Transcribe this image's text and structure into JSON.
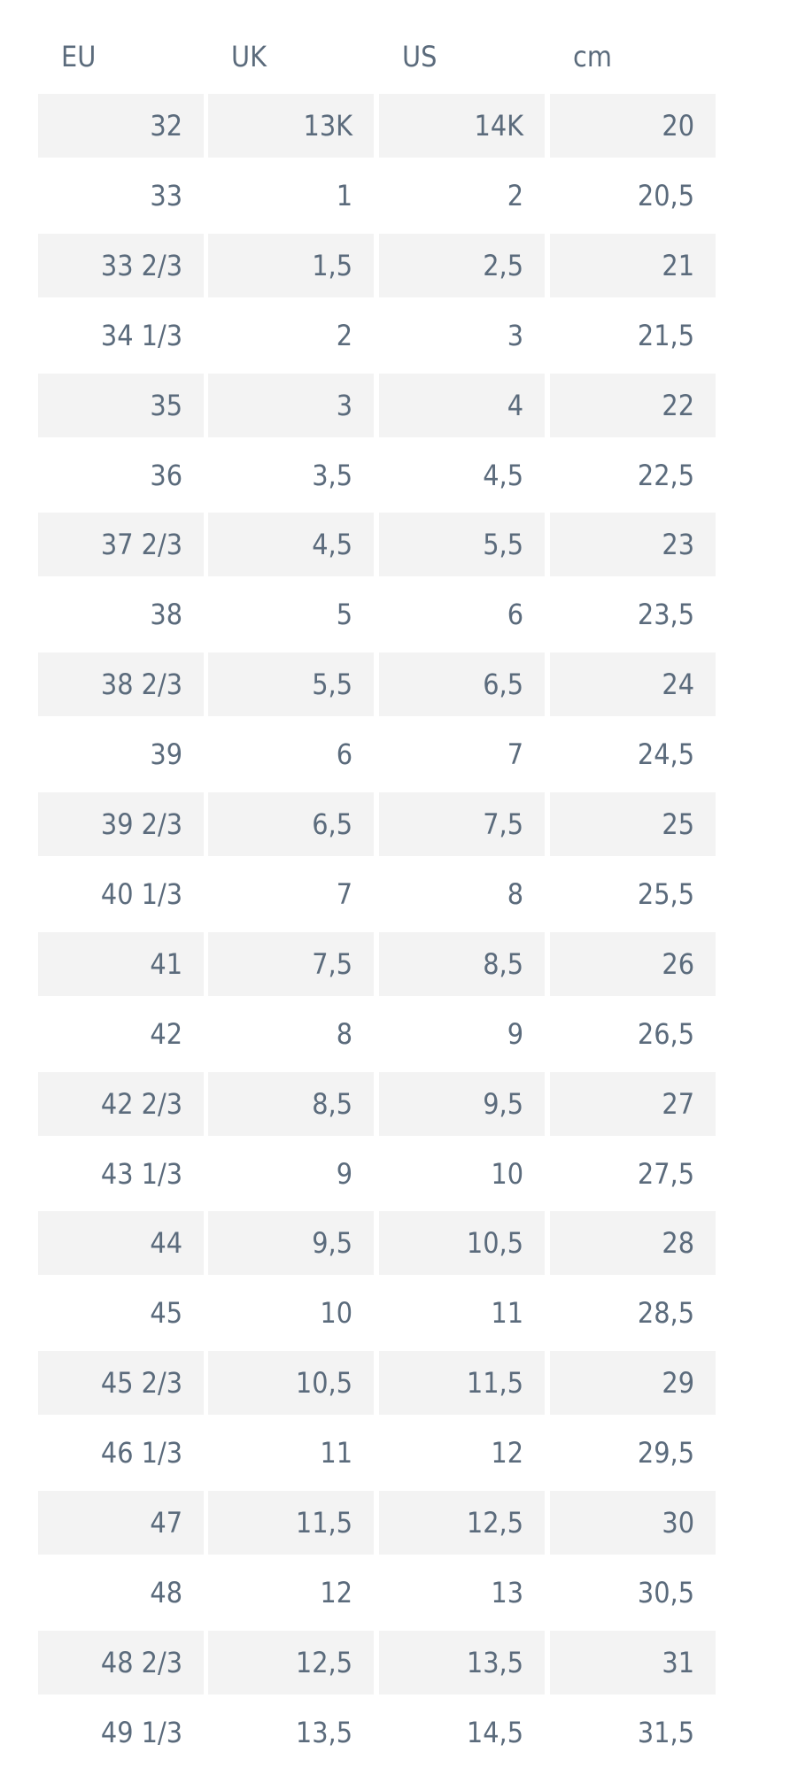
{
  "table": {
    "header": [
      "EU",
      "UK",
      "US",
      "cm"
    ],
    "rows": [
      [
        "32",
        "13K",
        "14K",
        "20"
      ],
      [
        "33",
        "1",
        "2",
        "20,5"
      ],
      [
        "33 2/3",
        "1,5",
        "2,5",
        "21"
      ],
      [
        "34 1/3",
        "2",
        "3",
        "21,5"
      ],
      [
        "35",
        "3",
        "4",
        "22"
      ],
      [
        "36",
        "3,5",
        "4,5",
        "22,5"
      ],
      [
        "37 2/3",
        "4,5",
        "5,5",
        "23"
      ],
      [
        "38",
        "5",
        "6",
        "23,5"
      ],
      [
        "38 2/3",
        "5,5",
        "6,5",
        "24"
      ],
      [
        "39",
        "6",
        "7",
        "24,5"
      ],
      [
        "39 2/3",
        "6,5",
        "7,5",
        "25"
      ],
      [
        "40 1/3",
        "7",
        "8",
        "25,5"
      ],
      [
        "41",
        "7,5",
        "8,5",
        "26"
      ],
      [
        "42",
        "8",
        "9",
        "26,5"
      ],
      [
        "42 2/3",
        "8,5",
        "9,5",
        "27"
      ],
      [
        "43 1/3",
        "9",
        "10",
        "27,5"
      ],
      [
        "44",
        "9,5",
        "10,5",
        "28"
      ],
      [
        "45",
        "10",
        "11",
        "28,5"
      ],
      [
        "45 2/3",
        "10,5",
        "11,5",
        "29"
      ],
      [
        "46 1/3",
        "11",
        "12",
        "29,5"
      ],
      [
        "47",
        "11,5",
        "12,5",
        "30"
      ],
      [
        "48",
        "12",
        "13",
        "30,5"
      ],
      [
        "48 2/3",
        "12,5",
        "13,5",
        "31"
      ],
      [
        "49 1/3",
        "13,5",
        "14,5",
        "31,5"
      ]
    ]
  }
}
